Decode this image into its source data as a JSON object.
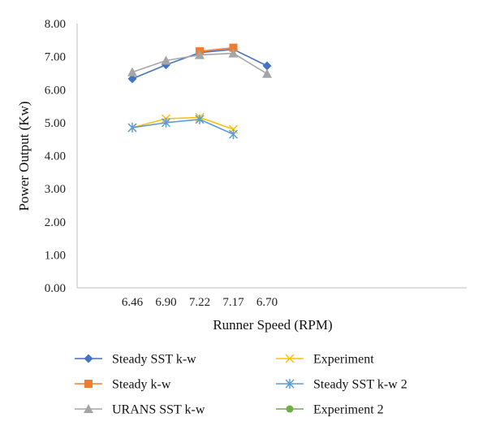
{
  "chart_data": {
    "type": "line",
    "xlabel": "Runner Speed (RPM)",
    "ylabel": "Power Output (Kw)",
    "categories": [
      "6.46",
      "6.90",
      "7.22",
      "7.17",
      "6.70"
    ],
    "ylim": [
      0,
      8
    ],
    "yticks": [
      "0.00",
      "1.00",
      "2.00",
      "3.00",
      "4.00",
      "5.00",
      "6.00",
      "7.00",
      "8.00"
    ],
    "grid": false,
    "legend_position": "bottom",
    "series": [
      {
        "name": "Steady SST k-w",
        "color": "#4472C4",
        "marker": "diamond",
        "values": [
          6.33,
          6.75,
          7.12,
          7.22,
          6.72
        ]
      },
      {
        "name": "Steady k-w",
        "color": "#ED7D31",
        "marker": "square",
        "values": [
          null,
          null,
          7.16,
          7.27,
          null
        ]
      },
      {
        "name": "URANS SST k-w",
        "color": "#A5A5A5",
        "marker": "triangle",
        "values": [
          6.53,
          6.88,
          7.05,
          7.1,
          6.48
        ]
      },
      {
        "name": "Experiment",
        "color": "#FFC000",
        "marker": "x",
        "values": [
          4.85,
          5.12,
          5.16,
          4.8,
          null
        ]
      },
      {
        "name": "Steady SST k-w 2",
        "color": "#5B9BD5",
        "marker": "star",
        "values": [
          4.85,
          5.0,
          5.1,
          4.65,
          null
        ]
      },
      {
        "name": "Experiment 2",
        "color": "#70AD47",
        "marker": "circle",
        "values": [
          null,
          null,
          null,
          null,
          null
        ]
      }
    ]
  }
}
